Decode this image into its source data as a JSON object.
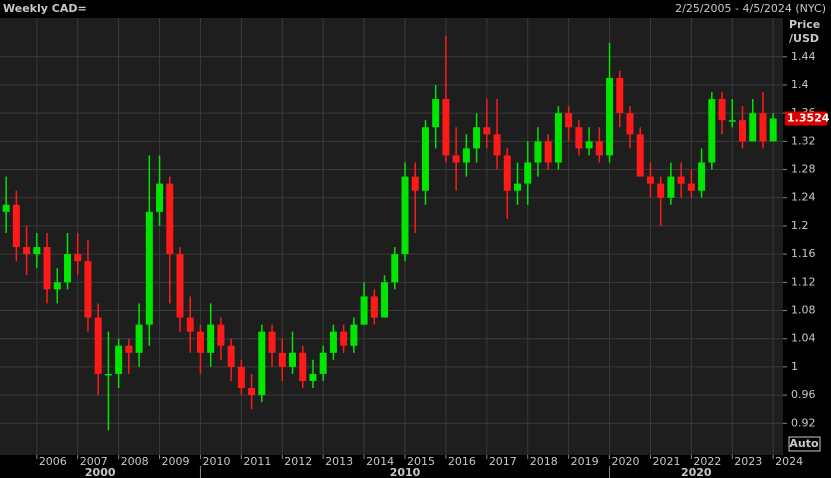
{
  "chart_data": {
    "type": "candlestick",
    "title": "Weekly CAD=",
    "date_range": "2/25/2005 - 4/5/2024 (NYC)",
    "y_label": "Price",
    "y_unit": "/USD",
    "scale_mode": "Auto",
    "up_color": "#00e600",
    "down_color": "#ff1a1a",
    "grid": true,
    "x": [
      2005.25,
      2005.5,
      2005.75,
      2006,
      2006.25,
      2006.5,
      2006.75,
      2007,
      2007.25,
      2007.5,
      2007.75,
      2008,
      2008.25,
      2008.5,
      2008.75,
      2009,
      2009.25,
      2009.5,
      2009.75,
      2010,
      2010.25,
      2010.5,
      2010.75,
      2011,
      2011.25,
      2011.5,
      2011.75,
      2012,
      2012.25,
      2012.5,
      2012.75,
      2013,
      2013.25,
      2013.5,
      2013.75,
      2014,
      2014.25,
      2014.5,
      2014.75,
      2015,
      2015.25,
      2015.5,
      2015.75,
      2016,
      2016.25,
      2016.5,
      2016.75,
      2017,
      2017.25,
      2017.5,
      2017.75,
      2018,
      2018.25,
      2018.5,
      2018.75,
      2019,
      2019.25,
      2019.5,
      2019.75,
      2020,
      2020.25,
      2020.5,
      2020.75,
      2021,
      2021.25,
      2021.5,
      2021.75,
      2022,
      2022.25,
      2022.5,
      2022.75,
      2023,
      2023.25,
      2023.5,
      2023.75,
      2024
    ],
    "open": [
      1.22,
      1.23,
      1.17,
      1.16,
      1.17,
      1.11,
      1.12,
      1.16,
      1.15,
      1.07,
      0.99,
      0.99,
      1.03,
      1.02,
      1.06,
      1.22,
      1.26,
      1.16,
      1.07,
      1.05,
      1.02,
      1.06,
      1.03,
      1.0,
      0.97,
      0.96,
      1.05,
      1.02,
      1.0,
      1.02,
      0.98,
      0.99,
      1.02,
      1.05,
      1.03,
      1.06,
      1.1,
      1.07,
      1.12,
      1.16,
      1.27,
      1.25,
      1.34,
      1.38,
      1.3,
      1.29,
      1.31,
      1.34,
      1.33,
      1.3,
      1.25,
      1.26,
      1.29,
      1.32,
      1.29,
      1.36,
      1.34,
      1.31,
      1.32,
      1.3,
      1.41,
      1.36,
      1.33,
      1.27,
      1.26,
      1.24,
      1.27,
      1.26,
      1.25,
      1.29,
      1.38,
      1.35,
      1.35,
      1.32,
      1.36,
      1.32
    ],
    "high": [
      1.27,
      1.25,
      1.2,
      1.19,
      1.19,
      1.14,
      1.19,
      1.19,
      1.18,
      1.09,
      1.05,
      1.04,
      1.04,
      1.09,
      1.3,
      1.3,
      1.27,
      1.17,
      1.1,
      1.06,
      1.09,
      1.07,
      1.04,
      1.01,
      0.99,
      1.06,
      1.06,
      1.04,
      1.05,
      1.03,
      1.01,
      1.03,
      1.06,
      1.06,
      1.07,
      1.12,
      1.11,
      1.13,
      1.17,
      1.29,
      1.29,
      1.35,
      1.4,
      1.47,
      1.34,
      1.33,
      1.36,
      1.38,
      1.38,
      1.31,
      1.29,
      1.32,
      1.34,
      1.33,
      1.37,
      1.37,
      1.35,
      1.34,
      1.34,
      1.46,
      1.42,
      1.37,
      1.34,
      1.29,
      1.27,
      1.29,
      1.29,
      1.28,
      1.31,
      1.39,
      1.39,
      1.38,
      1.37,
      1.38,
      1.39,
      1.36
    ],
    "low": [
      1.19,
      1.15,
      1.13,
      1.14,
      1.09,
      1.09,
      1.11,
      1.13,
      1.05,
      0.96,
      0.91,
      0.97,
      0.99,
      1.0,
      1.03,
      1.2,
      1.09,
      1.05,
      1.02,
      0.99,
      1.0,
      1.01,
      0.98,
      0.96,
      0.94,
      0.95,
      1.0,
      0.98,
      0.99,
      0.97,
      0.97,
      0.98,
      1.01,
      1.02,
      1.02,
      1.06,
      1.06,
      1.07,
      1.11,
      1.15,
      1.19,
      1.23,
      1.31,
      1.29,
      1.25,
      1.27,
      1.29,
      1.31,
      1.28,
      1.21,
      1.23,
      1.23,
      1.27,
      1.28,
      1.28,
      1.32,
      1.3,
      1.3,
      1.29,
      1.29,
      1.34,
      1.31,
      1.27,
      1.24,
      1.2,
      1.23,
      1.24,
      1.24,
      1.24,
      1.28,
      1.33,
      1.34,
      1.31,
      1.32,
      1.31,
      1.32
    ],
    "close": [
      1.23,
      1.17,
      1.16,
      1.17,
      1.11,
      1.12,
      1.16,
      1.15,
      1.07,
      0.99,
      0.99,
      1.03,
      1.02,
      1.06,
      1.22,
      1.26,
      1.16,
      1.07,
      1.05,
      1.02,
      1.06,
      1.03,
      1.0,
      0.97,
      0.96,
      1.05,
      1.02,
      1.0,
      1.02,
      0.98,
      0.99,
      1.02,
      1.05,
      1.03,
      1.06,
      1.1,
      1.07,
      1.12,
      1.16,
      1.27,
      1.25,
      1.34,
      1.38,
      1.3,
      1.29,
      1.31,
      1.34,
      1.33,
      1.3,
      1.25,
      1.26,
      1.29,
      1.32,
      1.29,
      1.36,
      1.34,
      1.31,
      1.32,
      1.3,
      1.41,
      1.36,
      1.33,
      1.27,
      1.26,
      1.24,
      1.27,
      1.26,
      1.25,
      1.29,
      1.38,
      1.35,
      1.35,
      1.32,
      1.36,
      1.32,
      1.3524
    ],
    "xlim": [
      2005.1,
      2024.24
    ],
    "xticks": [
      2006,
      2007,
      2008,
      2009,
      2010,
      2011,
      2012,
      2013,
      2014,
      2015,
      2016,
      2017,
      2018,
      2019,
      2020,
      2021,
      2022,
      2023,
      2024
    ],
    "decades": [
      2000,
      2010,
      2020
    ],
    "ylim": [
      0.875,
      1.495
    ],
    "yticks": [
      0.92,
      0.96,
      1,
      1.04,
      1.08,
      1.12,
      1.16,
      1.2,
      1.24,
      1.28,
      1.32,
      1.36,
      1.4,
      1.44
    ]
  }
}
